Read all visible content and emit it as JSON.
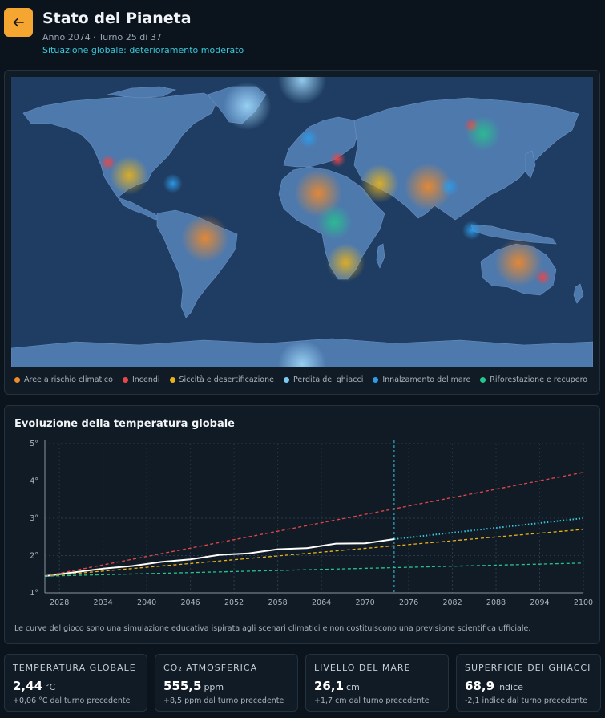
{
  "header": {
    "title": "Stato del Pianeta",
    "subtitle": "Anno 2074 · Turno 25 di 37",
    "status": "Situazione globale: deterioramento moderato"
  },
  "colors": {
    "accent": "#f4a630",
    "risk": "#f08a2c",
    "fire": "#e8474a",
    "drought": "#e8b21d",
    "ice": "#7cc8f2",
    "sea": "#2e9be8",
    "forest": "#27c48e"
  },
  "legend": [
    {
      "label": "Aree a rischio climatico",
      "color": "#f08a2c"
    },
    {
      "label": "Incendi",
      "color": "#e8474a"
    },
    {
      "label": "Siccità e desertificazione",
      "color": "#e8b21d"
    },
    {
      "label": "Perdita dei ghiacci",
      "color": "#7cc8f2"
    },
    {
      "label": "Innalzamento del mare",
      "color": "#2e9be8"
    },
    {
      "label": "Riforestazione e recupero",
      "color": "#27c48e"
    }
  ],
  "hotspots": [
    {
      "type": "ice",
      "lon": -34,
      "lat": 72
    },
    {
      "type": "ice",
      "lon": 0,
      "lat": 88
    },
    {
      "type": "ice",
      "lon": 0,
      "lat": -88
    },
    {
      "type": "fire",
      "lon": -120,
      "lat": 37
    },
    {
      "type": "drought",
      "lon": -107,
      "lat": 29
    },
    {
      "type": "sea",
      "lon": -80,
      "lat": 24
    },
    {
      "type": "risk",
      "lon": -60,
      "lat": -10
    },
    {
      "type": "sea",
      "lon": 4,
      "lat": 52
    },
    {
      "type": "fire",
      "lon": 22,
      "lat": 39
    },
    {
      "type": "risk",
      "lon": 10,
      "lat": 18
    },
    {
      "type": "forest",
      "lon": 20,
      "lat": 0
    },
    {
      "type": "drought",
      "lon": 48,
      "lat": 24
    },
    {
      "type": "risk",
      "lon": 78,
      "lat": 22
    },
    {
      "type": "sea",
      "lon": 91,
      "lat": 22
    },
    {
      "type": "fire",
      "lon": 105,
      "lat": 60
    },
    {
      "type": "forest",
      "lon": 112,
      "lat": 55
    },
    {
      "type": "sea",
      "lon": 105,
      "lat": -5
    },
    {
      "type": "drought",
      "lon": 27,
      "lat": -25
    },
    {
      "type": "risk",
      "lon": 134,
      "lat": -25
    },
    {
      "type": "fire",
      "lon": 149,
      "lat": -34
    }
  ],
  "chart": {
    "title": "Evoluzione della temperatura globale",
    "disclaimer": "Le curve del gioco sono una simulazione educativa ispirata agli scenari climatici e non costituiscono una previsione scientifica ufficiale."
  },
  "chart_data": {
    "type": "line",
    "title": "Evoluzione della temperatura globale",
    "xlabel": "",
    "ylabel": "",
    "xlim": [
      2026,
      2100
    ],
    "ylim": [
      1,
      5
    ],
    "x_ticks": [
      2028,
      2034,
      2040,
      2046,
      2052,
      2058,
      2064,
      2070,
      2076,
      2082,
      2088,
      2094,
      2100
    ],
    "y_ticks": [
      1,
      2,
      3,
      4,
      5
    ],
    "y_tick_labels": [
      "1°",
      "2°",
      "3°",
      "4°",
      "5°"
    ],
    "current_year": 2074,
    "grid": true,
    "series": [
      {
        "color": "#ffffff",
        "style": "solid",
        "points": [
          [
            2026,
            1.45
          ],
          [
            2030,
            1.55
          ],
          [
            2034,
            1.65
          ],
          [
            2038,
            1.72
          ],
          [
            2042,
            1.83
          ],
          [
            2046,
            1.9
          ],
          [
            2050,
            2.02
          ],
          [
            2054,
            2.06
          ],
          [
            2058,
            2.17
          ],
          [
            2062,
            2.2
          ],
          [
            2066,
            2.32
          ],
          [
            2070,
            2.33
          ],
          [
            2074,
            2.44
          ]
        ]
      },
      {
        "color": "#36c7d9",
        "style": "dotted",
        "points": [
          [
            2074,
            2.44
          ],
          [
            2100,
            3.0
          ]
        ]
      },
      {
        "color": "#e8474a",
        "style": "dashed",
        "points": [
          [
            2026,
            1.45
          ],
          [
            2100,
            4.23
          ]
        ]
      },
      {
        "color": "#e8b21d",
        "style": "dashed",
        "points": [
          [
            2026,
            1.45
          ],
          [
            2100,
            2.7
          ]
        ]
      },
      {
        "color": "#27c48e",
        "style": "dashed",
        "points": [
          [
            2026,
            1.45
          ],
          [
            2100,
            1.8
          ]
        ]
      }
    ]
  },
  "stats": [
    {
      "label": "TEMPERATURA GLOBALE",
      "value": "2,44",
      "unit": "°C",
      "delta": "+0,06 °C dal turno precedente"
    },
    {
      "label": "CO₂ ATMOSFERICA",
      "value": "555,5",
      "unit": "ppm",
      "delta": "+8,5 ppm dal turno precedente"
    },
    {
      "label": "LIVELLO DEL MARE",
      "value": "26,1",
      "unit": "cm",
      "delta": "+1,7 cm dal turno precedente"
    },
    {
      "label": "SUPERFICIE DEI GHIACCI",
      "value": "68,9",
      "unit": "indice",
      "delta": "-2,1 indice dal turno precedente"
    }
  ]
}
